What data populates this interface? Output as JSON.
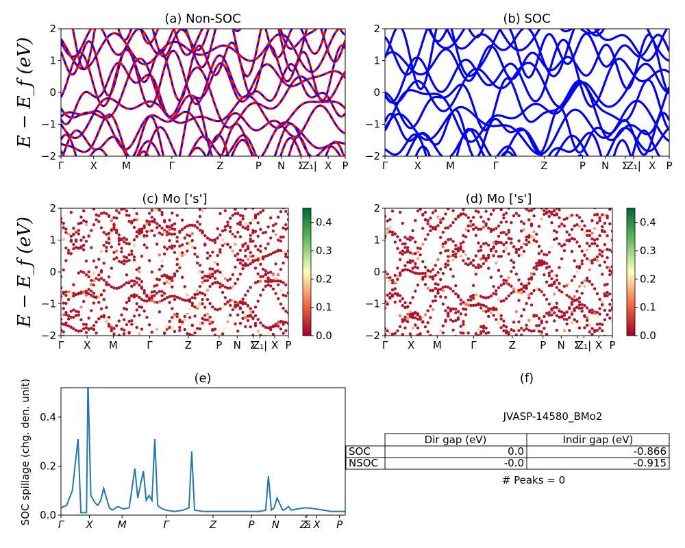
{
  "chart_data": [
    {
      "id": "a",
      "type": "line",
      "title": "(a) Non-SOC",
      "ylabel": "E − E_f (eV)",
      "ylim": [
        -2,
        2
      ],
      "yticks": [
        "−2",
        "−1",
        "0",
        "1",
        "2"
      ],
      "kpoint_labels": [
        "Γ",
        "X",
        "M",
        "Γ",
        "Z",
        "P",
        "N",
        "Σ",
        "Z₁|",
        "X",
        "P"
      ],
      "series": [
        {
          "name": "",
          "color": "#ff0000",
          "style": "solid"
        },
        {
          "name": "",
          "color": "#0000ff",
          "style": "dashed"
        }
      ]
    },
    {
      "id": "b",
      "type": "line",
      "title": "(b) SOC",
      "ylim": [
        -2,
        2
      ],
      "yticks": [
        "−2",
        "−1",
        "0",
        "1",
        "2"
      ],
      "kpoint_labels": [
        "Γ",
        "X",
        "M",
        "Γ",
        "Z",
        "P",
        "N",
        "Σ",
        "Z₁|",
        "X",
        "P"
      ],
      "series": [
        {
          "name": "",
          "color": "#0000ff",
          "style": "solid"
        }
      ]
    },
    {
      "id": "c",
      "type": "scatter",
      "title": "(c)  Mo ['s']",
      "ylabel": "E − E_f (eV)",
      "ylim": [
        -2,
        2
      ],
      "yticks": [
        "−2",
        "−1",
        "0",
        "1",
        "2"
      ],
      "kpoint_labels": [
        "Γ",
        "X",
        "M",
        "Γ",
        "Z",
        "P",
        "N",
        "Σ",
        "Z₁|",
        "X",
        "P"
      ],
      "colorbar": {
        "min": 0.0,
        "max": 0.45,
        "ticks": [
          "0.0",
          "0.1",
          "0.2",
          "0.3",
          "0.4"
        ],
        "colormap": "RdYlGn"
      }
    },
    {
      "id": "d",
      "type": "scatter",
      "title": "(d) Mo ['s']",
      "ylim": [
        -2,
        2
      ],
      "yticks": [
        "−2",
        "−1",
        "0",
        "1",
        "2"
      ],
      "kpoint_labels": [
        "Γ",
        "X",
        "M",
        "Γ",
        "Z",
        "P",
        "N",
        "Σ",
        "Z₁|",
        "X",
        "P"
      ],
      "colorbar": {
        "min": 0.0,
        "max": 0.45,
        "ticks": [
          "0.0",
          "0.1",
          "0.2",
          "0.3",
          "0.4"
        ],
        "colormap": "RdYlGn"
      }
    },
    {
      "id": "e",
      "type": "line",
      "title": "(e)",
      "ylabel": "SOC spillage (chg. den. unit)",
      "ylim": [
        0,
        0.52
      ],
      "yticks": [
        "0.0",
        "0.2",
        "0.4"
      ],
      "kpoint_labels": [
        "Γ",
        "X",
        "M",
        "Γ",
        "Z",
        "P",
        "N",
        "Z₁",
        "Σ",
        "X",
        "P"
      ],
      "series": [
        {
          "name": "",
          "color": "#1f77b4"
        }
      ],
      "x": [
        0,
        0.02,
        0.04,
        0.06,
        0.07,
        0.09,
        0.095,
        0.105,
        0.12,
        0.13,
        0.14,
        0.15,
        0.16,
        0.17,
        0.18,
        0.2,
        0.22,
        0.24,
        0.26,
        0.27,
        0.29,
        0.3,
        0.31,
        0.32,
        0.33,
        0.34,
        0.35,
        0.36,
        0.37,
        0.4,
        0.43,
        0.45,
        0.46,
        0.47,
        0.5,
        0.55,
        0.6,
        0.65,
        0.7,
        0.72,
        0.73,
        0.74,
        0.75,
        0.76,
        0.78,
        0.79,
        0.8,
        0.81,
        0.83,
        0.86,
        0.9,
        0.95,
        1.0
      ],
      "values": [
        0.03,
        0.04,
        0.1,
        0.31,
        0.01,
        0.01,
        0.55,
        0.08,
        0.05,
        0.04,
        0.06,
        0.11,
        0.07,
        0.03,
        0.02,
        0.035,
        0.025,
        0.03,
        0.19,
        0.07,
        0.18,
        0.06,
        0.08,
        0.06,
        0.31,
        0.04,
        0.03,
        0.025,
        0.02,
        0.015,
        0.02,
        0.03,
        0.26,
        0.02,
        0.015,
        0.015,
        0.015,
        0.015,
        0.015,
        0.02,
        0.16,
        0.02,
        0.03,
        0.07,
        0.02,
        0.025,
        0.035,
        0.02,
        0.025,
        0.03,
        0.025,
        0.015,
        0.015
      ]
    }
  ],
  "panel_f": {
    "title": "(f)",
    "material": "JVASP-14580_BMo2",
    "table": {
      "headers": [
        "",
        "Dir gap (eV)",
        "Indir gap (eV)"
      ],
      "rows": [
        [
          "SOC",
          "0.0",
          "-0.866"
        ],
        [
          "NSOC",
          "-0.0",
          "-0.915"
        ]
      ]
    },
    "peaks": "# Peaks = 0"
  }
}
